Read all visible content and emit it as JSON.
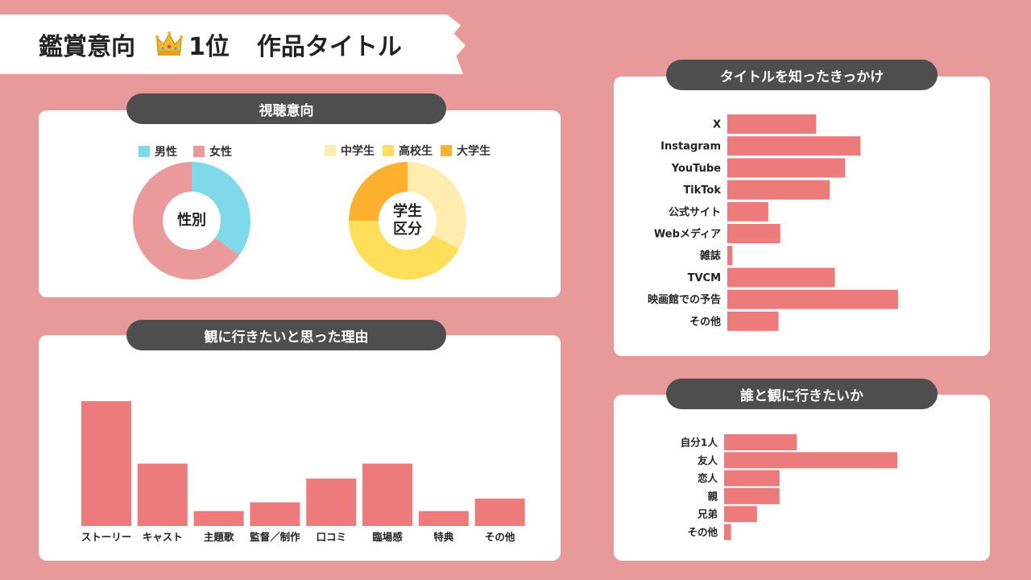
{
  "header": {
    "title_prefix": "鑑賞意向",
    "title_rank": "1位",
    "title_work": "作品タイトル",
    "crown_icon": "crown-icon"
  },
  "sections": {
    "viewing_intent": "視聴意向",
    "reasons": "観に行きたいと思った理由",
    "awareness": "タイトルを知ったきっかけ",
    "companion": "誰と観に行きたいか"
  },
  "colors": {
    "background": "#e89a9a",
    "bar": "#ee7b7b",
    "male": "#7fd9ea",
    "female": "#ea9a9a",
    "junior_high": "#ffedb0",
    "high_school": "#ffdf5a",
    "university": "#fdb12e"
  },
  "chart_data": [
    {
      "type": "pie",
      "title": "性別",
      "legend": [
        "男性",
        "女性"
      ],
      "values": [
        35,
        65
      ],
      "colors": [
        "#7fd9ea",
        "#ea9a9a"
      ]
    },
    {
      "type": "pie",
      "title_lines": [
        "学生",
        "区分"
      ],
      "legend": [
        "中学生",
        "高校生",
        "大学生"
      ],
      "values": [
        33,
        42,
        25
      ],
      "colors": [
        "#ffedb0",
        "#ffdf5a",
        "#fdb12e"
      ]
    },
    {
      "type": "bar",
      "title": "観に行きたいと思った理由",
      "categories": [
        "ストーリー",
        "キャスト",
        "主題歌",
        "監督／制作",
        "口コミ",
        "臨場感",
        "特典",
        "その他"
      ],
      "values": [
        100,
        50,
        12,
        19,
        38,
        50,
        12,
        22
      ],
      "ylim": [
        0,
        100
      ]
    },
    {
      "type": "bar",
      "orientation": "horizontal",
      "title": "タイトルを知ったきっかけ",
      "categories": [
        "X",
        "Instagram",
        "YouTube",
        "TikTok",
        "公式サイト",
        "Webメディア",
        "雑誌",
        "TVCM",
        "映画館での予告",
        "その他"
      ],
      "values": [
        52,
        78,
        69,
        60,
        24,
        31,
        3,
        63,
        100,
        30
      ],
      "xlim": [
        0,
        100
      ]
    },
    {
      "type": "bar",
      "orientation": "horizontal",
      "title": "誰と観に行きたいか",
      "categories": [
        "自分1人",
        "友人",
        "恋人",
        "親",
        "兄弟",
        "その他"
      ],
      "values": [
        42,
        100,
        32,
        32,
        19,
        4
      ],
      "xlim": [
        0,
        100
      ]
    }
  ]
}
